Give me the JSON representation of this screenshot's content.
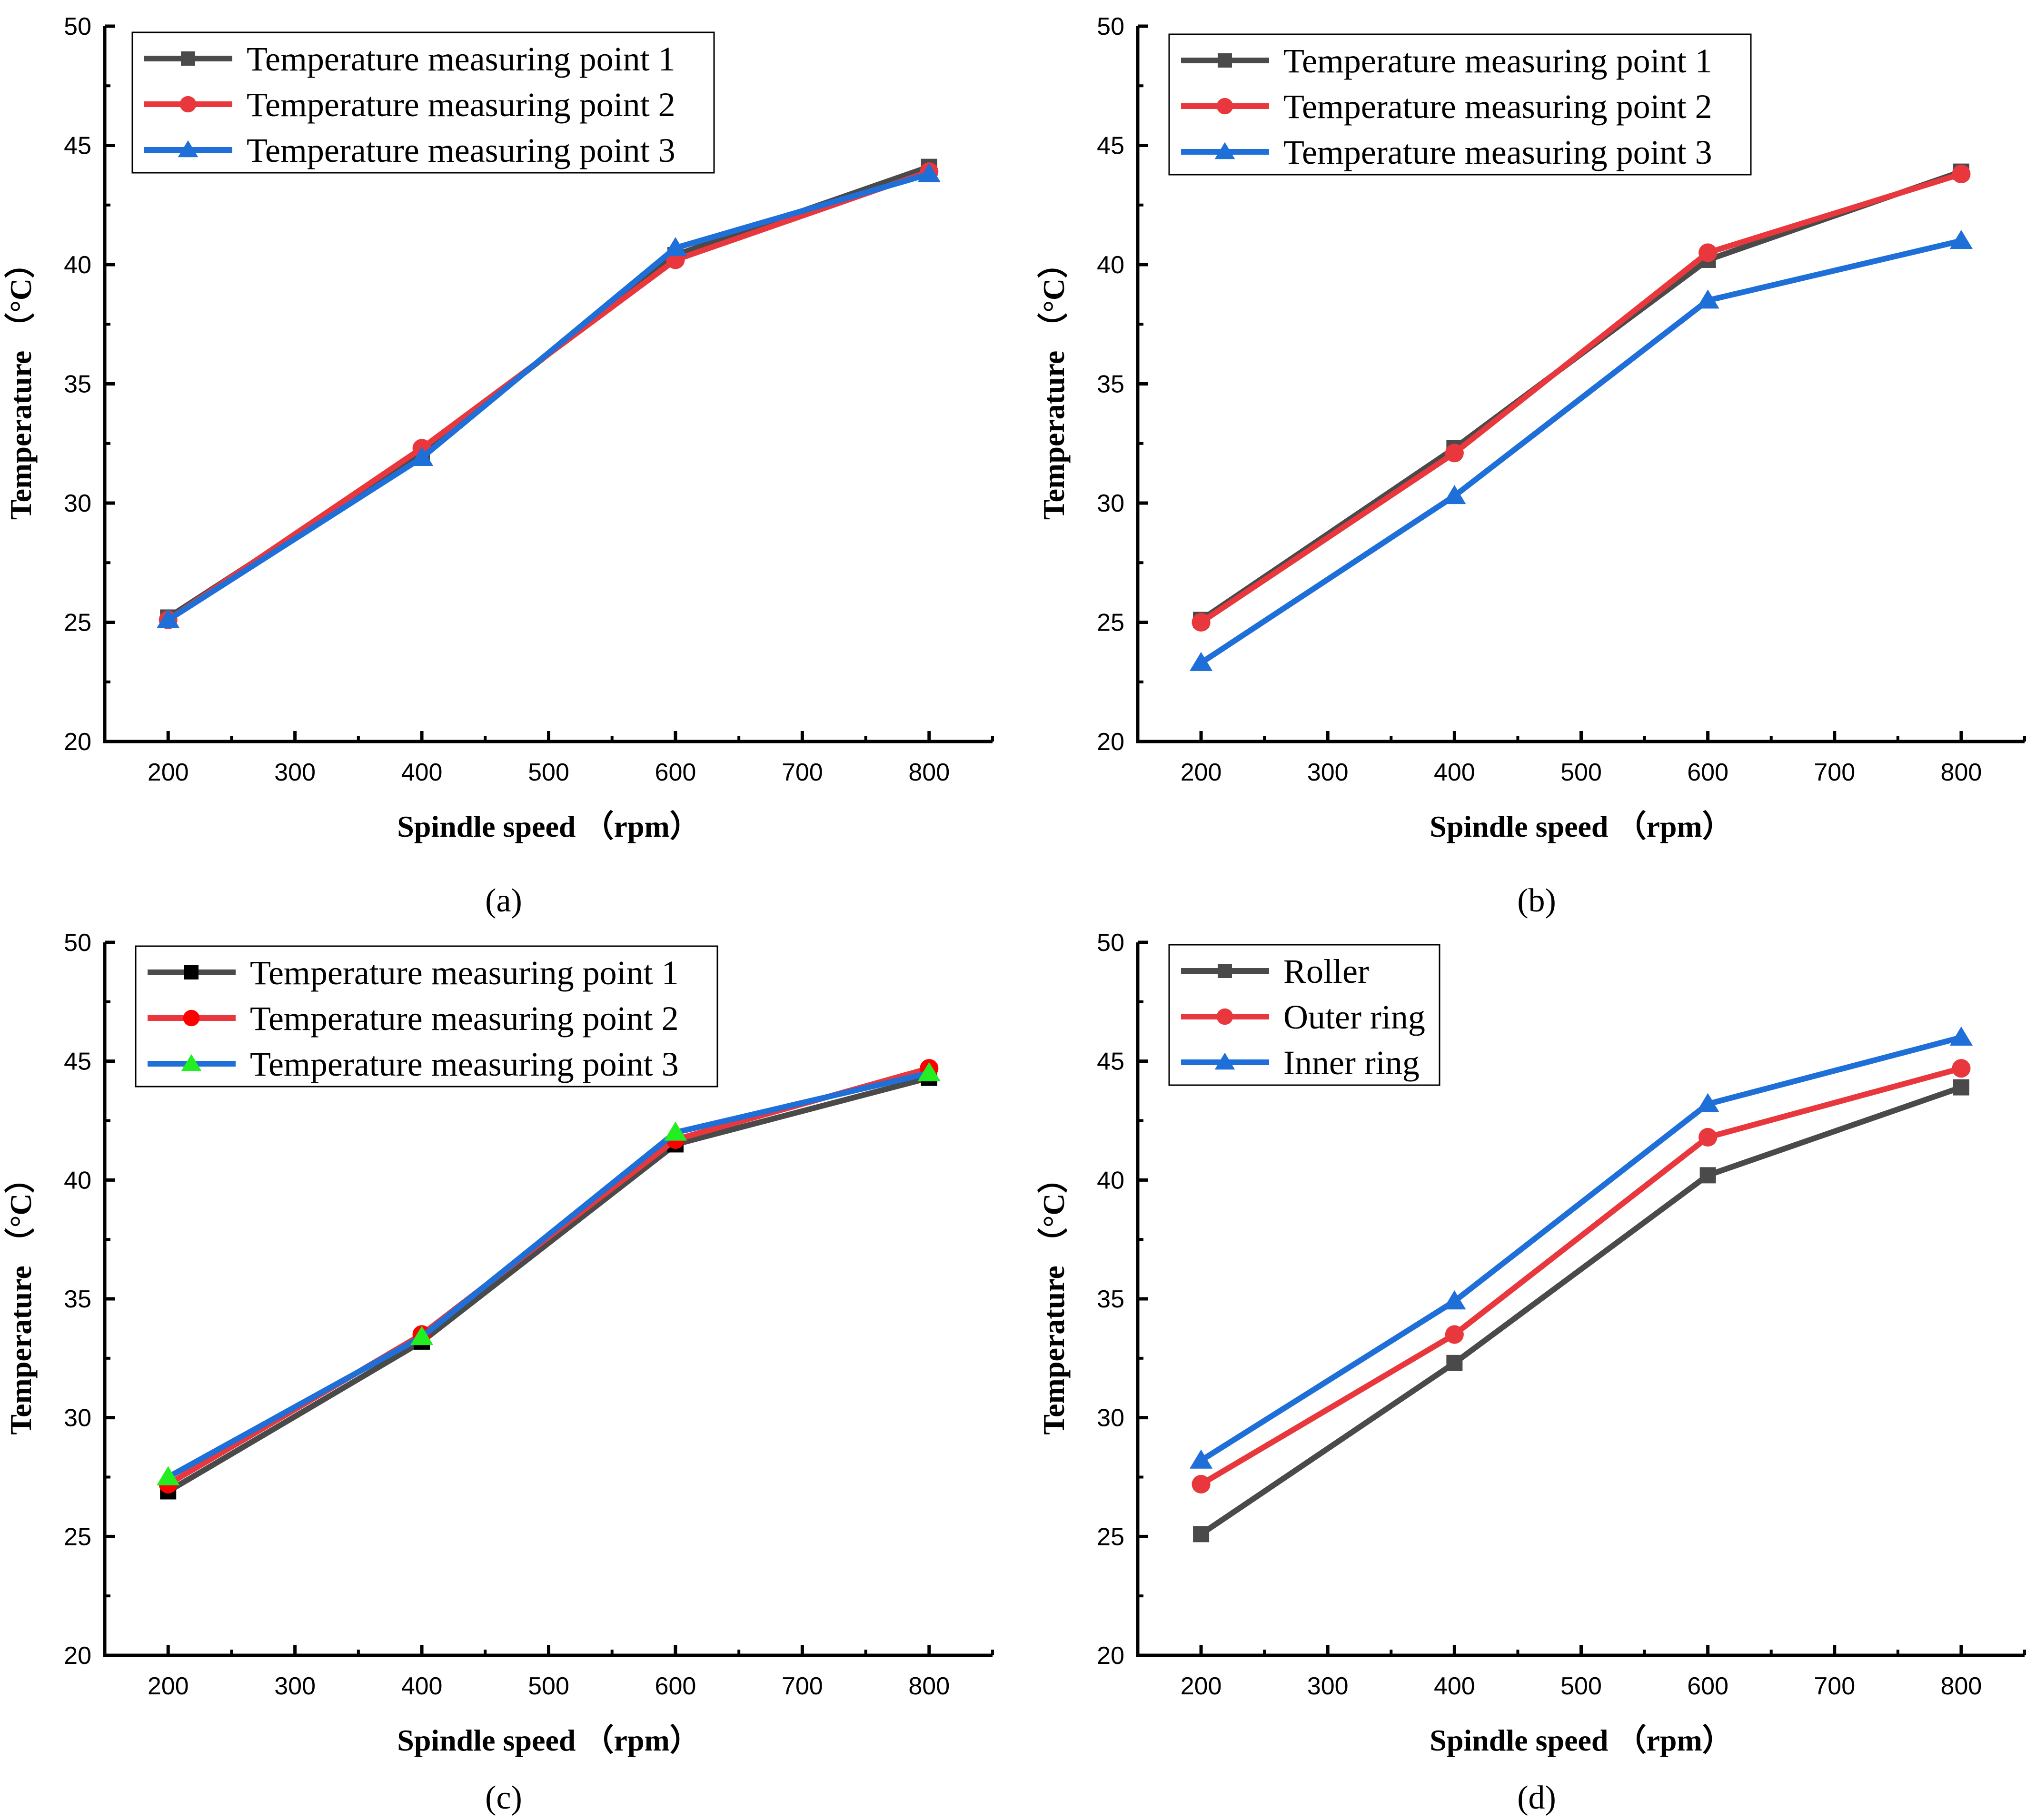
{
  "chart_data": [
    {
      "type": "line",
      "panel_label": "(a)",
      "xlabel": "Spindle speed （rpm）",
      "ylabel": "Temperature （°C）",
      "x_ticks": [
        "200",
        "300",
        "400",
        "500",
        "600",
        "700",
        "800"
      ],
      "y_ticks": [
        "20",
        "25",
        "30",
        "35",
        "40",
        "45",
        "50"
      ],
      "xlim": [
        150,
        850
      ],
      "ylim": [
        20,
        50
      ],
      "legend_position": "top-left",
      "x": [
        200,
        400,
        600,
        800
      ],
      "series": [
        {
          "name": "Temperature measuring point 1",
          "values": [
            25.2,
            32.1,
            40.4,
            44.1
          ],
          "color": "#4a4a4a",
          "marker": "square",
          "marker_color": "#4a4a4a"
        },
        {
          "name": "Temperature measuring point 2",
          "values": [
            25.1,
            32.3,
            40.2,
            43.9
          ],
          "color": "#e8383d",
          "marker": "circle",
          "marker_color": "#e8383d"
        },
        {
          "name": "Temperature measuring point 3",
          "values": [
            25.1,
            31.9,
            40.7,
            43.8
          ],
          "color": "#1f6fd8",
          "marker": "triangle",
          "marker_color": "#1f6fd8"
        }
      ]
    },
    {
      "type": "line",
      "panel_label": "(b)",
      "xlabel": "Spindle speed （rpm）",
      "ylabel": "Temperature （°C）",
      "x_ticks": [
        "200",
        "300",
        "400",
        "500",
        "600",
        "700",
        "800"
      ],
      "y_ticks": [
        "20",
        "25",
        "30",
        "35",
        "40",
        "45",
        "50"
      ],
      "xlim": [
        150,
        850
      ],
      "ylim": [
        20,
        50
      ],
      "legend_position": "top-left",
      "x": [
        200,
        400,
        600,
        800
      ],
      "series": [
        {
          "name": "Temperature measuring point 1",
          "values": [
            25.1,
            32.3,
            40.2,
            43.9
          ],
          "color": "#4a4a4a",
          "marker": "square",
          "marker_color": "#4a4a4a"
        },
        {
          "name": "Temperature measuring point 2",
          "values": [
            25.0,
            32.1,
            40.5,
            43.8
          ],
          "color": "#e8383d",
          "marker": "circle",
          "marker_color": "#e8383d"
        },
        {
          "name": "Temperature measuring point 3",
          "values": [
            23.3,
            30.3,
            38.5,
            41.0
          ],
          "color": "#1f6fd8",
          "marker": "triangle",
          "marker_color": "#1f6fd8"
        }
      ]
    },
    {
      "type": "line",
      "panel_label": "(c)",
      "xlabel": "Spindle speed （rpm）",
      "ylabel": "Temperature （°C）",
      "x_ticks": [
        "200",
        "300",
        "400",
        "500",
        "600",
        "700",
        "800"
      ],
      "y_ticks": [
        "20",
        "25",
        "30",
        "35",
        "40",
        "45",
        "50"
      ],
      "xlim": [
        150,
        850
      ],
      "ylim": [
        20,
        50
      ],
      "legend_position": "top-left",
      "x": [
        200,
        400,
        600,
        800
      ],
      "series": [
        {
          "name": "Temperature measuring point 1",
          "values": [
            26.9,
            33.2,
            41.5,
            44.3
          ],
          "color": "#4a4a4a",
          "marker": "square",
          "marker_color": "#000000"
        },
        {
          "name": "Temperature measuring point 2",
          "values": [
            27.2,
            33.5,
            41.7,
            44.7
          ],
          "color": "#e8383d",
          "marker": "circle",
          "marker_color": "#ff0000"
        },
        {
          "name": "Temperature measuring point 3",
          "values": [
            27.5,
            33.4,
            42.0,
            44.5
          ],
          "color": "#1f6fd8",
          "marker": "triangle",
          "marker_color": "#22ee22"
        }
      ]
    },
    {
      "type": "line",
      "panel_label": "(d)",
      "xlabel": "Spindle speed （rpm）",
      "ylabel": "Temperature （°C）",
      "x_ticks": [
        "200",
        "300",
        "400",
        "500",
        "600",
        "700",
        "800"
      ],
      "y_ticks": [
        "20",
        "25",
        "30",
        "35",
        "40",
        "45",
        "50"
      ],
      "xlim": [
        150,
        850
      ],
      "ylim": [
        20,
        50
      ],
      "legend_position": "top-left",
      "x": [
        200,
        400,
        600,
        800
      ],
      "series": [
        {
          "name": "Roller",
          "values": [
            25.1,
            32.3,
            40.2,
            43.9
          ],
          "color": "#4a4a4a",
          "marker": "square",
          "marker_color": "#4a4a4a"
        },
        {
          "name": "Outer ring",
          "values": [
            27.2,
            33.5,
            41.8,
            44.7
          ],
          "color": "#e8383d",
          "marker": "circle",
          "marker_color": "#e8383d"
        },
        {
          "name": "Inner ring",
          "values": [
            28.2,
            34.9,
            43.2,
            46.0
          ],
          "color": "#1f6fd8",
          "marker": "triangle",
          "marker_color": "#1f6fd8"
        }
      ]
    }
  ]
}
